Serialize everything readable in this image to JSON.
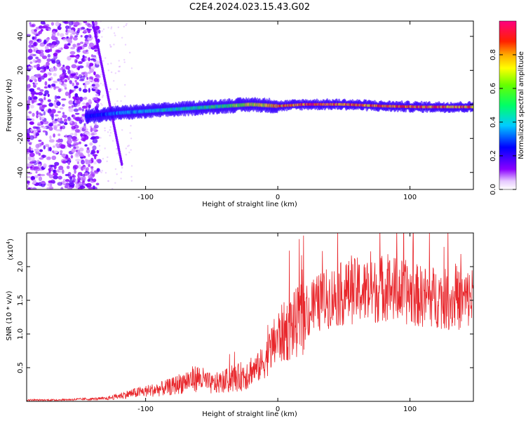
{
  "title": "C2E4.2024.023.15.43.G02",
  "colors": {
    "snr_line": "#e8262b",
    "dominant_trace": "#ff2020",
    "sparse_noise": "#7a2cff"
  },
  "chart_data": [
    {
      "type": "heatmap",
      "xlabel": "Height of straight line (km)",
      "ylabel": "Frequency (Hz)",
      "xlim": [
        -190,
        148
      ],
      "ylim": [
        -50,
        49
      ],
      "xticks": [
        -100,
        0,
        100
      ],
      "yticks": [
        -40,
        -20,
        0,
        20,
        40
      ],
      "grid": false,
      "colorbar": {
        "label": "Normalized spectral amplitude",
        "range": [
          0,
          1
        ],
        "ticks": [
          0.0,
          0.2,
          0.4,
          0.6,
          0.8
        ],
        "tick_labels": [
          "0.0",
          "0.2",
          "0.4",
          "0.6",
          "0.8"
        ],
        "colormap": "rainbow (white-violet-blue-cyan-green-yellow-orange-red-magenta)"
      },
      "features": [
        {
          "name": "noise region",
          "x_range": [
            -190,
            -135
          ],
          "y_range": [
            -50,
            49
          ],
          "amplitude": 0.15
        },
        {
          "name": "diagonal streak",
          "from": [
            -140,
            49
          ],
          "to": [
            -118,
            -35
          ],
          "amplitude": 0.15
        },
        {
          "name": "spectral trace",
          "points": [
            {
              "x": -145,
              "y": -7,
              "amplitude": 0.25
            },
            {
              "x": -120,
              "y": -5,
              "amplitude": 0.35
            },
            {
              "x": -100,
              "y": -4,
              "amplitude": 0.4
            },
            {
              "x": -80,
              "y": -3,
              "amplitude": 0.45
            },
            {
              "x": -60,
              "y": -2,
              "amplitude": 0.5
            },
            {
              "x": -40,
              "y": -1,
              "amplitude": 0.55
            },
            {
              "x": -20,
              "y": 0,
              "amplitude": 0.75
            },
            {
              "x": 0,
              "y": -1,
              "amplitude": 0.8
            },
            {
              "x": 20,
              "y": 0,
              "amplitude": 0.9
            },
            {
              "x": 50,
              "y": 0,
              "amplitude": 0.9
            },
            {
              "x": 80,
              "y": -1,
              "amplitude": 0.85
            },
            {
              "x": 110,
              "y": -1.5,
              "amplitude": 0.9
            },
            {
              "x": 148,
              "y": -1.5,
              "amplitude": 0.85
            }
          ]
        }
      ]
    },
    {
      "type": "line",
      "xlabel": "Height of straight line (km)",
      "ylabel": "SNR (10 * v/v)",
      "y_multiplier": "(x10",
      "y_multiplier_exp": "4",
      "y_multiplier_close": ")",
      "xlim": [
        -190,
        148
      ],
      "ylim": [
        0,
        2.5
      ],
      "xticks": [
        -100,
        0,
        100
      ],
      "yticks": [
        0.5,
        1.0,
        1.5,
        2.0
      ],
      "ytick_labels": [
        "0.5",
        "1.0",
        "1.5",
        "2.0"
      ],
      "grid": false,
      "series": [
        {
          "x": [
            -190,
            -170,
            -150,
            -130,
            -120,
            -110,
            -100,
            -90,
            -80,
            -70,
            -60,
            -50,
            -40,
            -30,
            -20,
            -15,
            -10,
            0,
            10,
            20,
            30,
            40,
            50,
            60,
            70,
            80,
            90,
            100,
            110,
            120,
            130,
            140,
            148
          ],
          "y": [
            0.02,
            0.02,
            0.03,
            0.04,
            0.08,
            0.12,
            0.15,
            0.18,
            0.22,
            0.3,
            0.35,
            0.25,
            0.3,
            0.35,
            0.45,
            0.5,
            0.6,
            0.95,
            1.1,
            1.25,
            1.45,
            1.55,
            1.6,
            1.65,
            1.6,
            1.7,
            1.65,
            1.6,
            1.55,
            1.55,
            1.5,
            1.5,
            1.55
          ]
        }
      ]
    }
  ]
}
